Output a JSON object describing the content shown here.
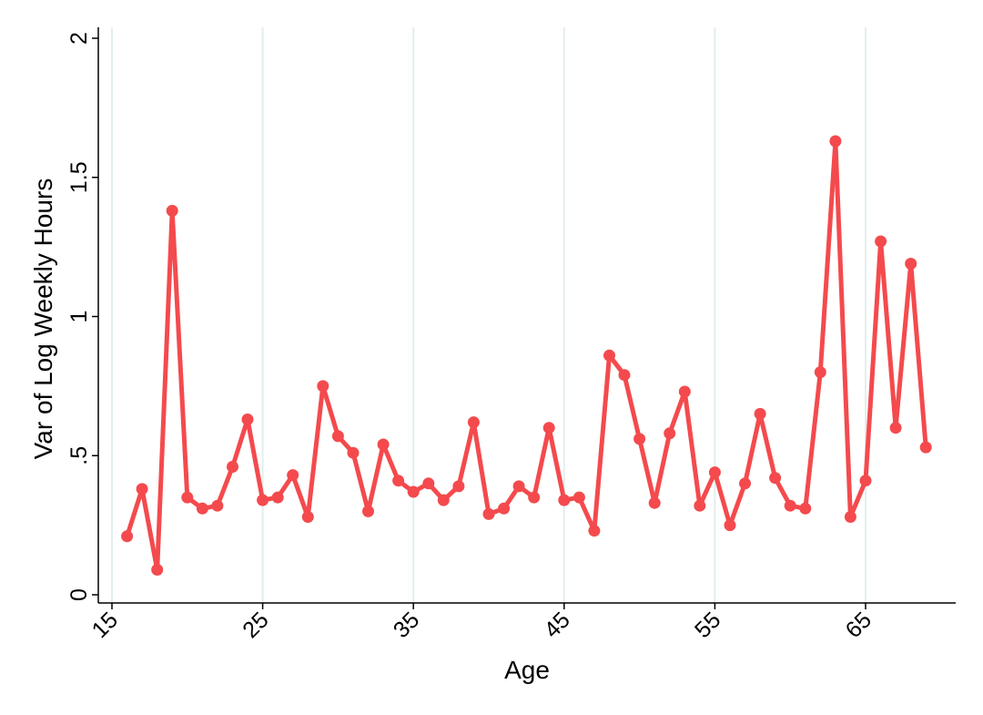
{
  "chart_data": {
    "type": "line",
    "xlabel": "Age",
    "ylabel": "Var of Log Weekly Hours",
    "xlim": [
      15,
      70
    ],
    "ylim": [
      0,
      2
    ],
    "x_ticks": [
      15,
      25,
      35,
      45,
      55,
      65
    ],
    "x_tick_labels": [
      "15",
      "25",
      "35",
      "45",
      "55",
      "65"
    ],
    "y_ticks": [
      0,
      0.5,
      1,
      1.5,
      2
    ],
    "y_tick_labels": [
      "0",
      ".5",
      "1",
      "1.5",
      "2"
    ],
    "grid": "vertical",
    "legend": "none",
    "series": [
      {
        "color": "#f44a4d",
        "x": [
          16,
          17,
          18,
          19,
          20,
          21,
          22,
          23,
          24,
          25,
          26,
          27,
          28,
          29,
          30,
          31,
          32,
          33,
          34,
          35,
          36,
          37,
          38,
          39,
          40,
          41,
          42,
          43,
          44,
          45,
          46,
          47,
          48,
          49,
          50,
          51,
          52,
          53,
          54,
          55,
          56,
          57,
          58,
          59,
          60,
          61,
          62,
          63,
          64,
          65,
          66,
          67,
          68,
          69
        ],
        "y": [
          0.21,
          0.38,
          0.09,
          1.38,
          0.35,
          0.31,
          0.32,
          0.46,
          0.63,
          0.34,
          0.35,
          0.43,
          0.28,
          0.75,
          0.57,
          0.51,
          0.3,
          0.54,
          0.41,
          0.37,
          0.4,
          0.34,
          0.39,
          0.62,
          0.29,
          0.31,
          0.39,
          0.35,
          0.6,
          0.34,
          0.35,
          0.23,
          0.86,
          0.79,
          0.56,
          0.33,
          0.58,
          0.73,
          0.32,
          0.44,
          0.25,
          0.4,
          0.65,
          0.42,
          0.32,
          0.31,
          0.8,
          1.63,
          0.28,
          0.41,
          1.27,
          0.6,
          1.19,
          0.53
        ]
      }
    ]
  }
}
